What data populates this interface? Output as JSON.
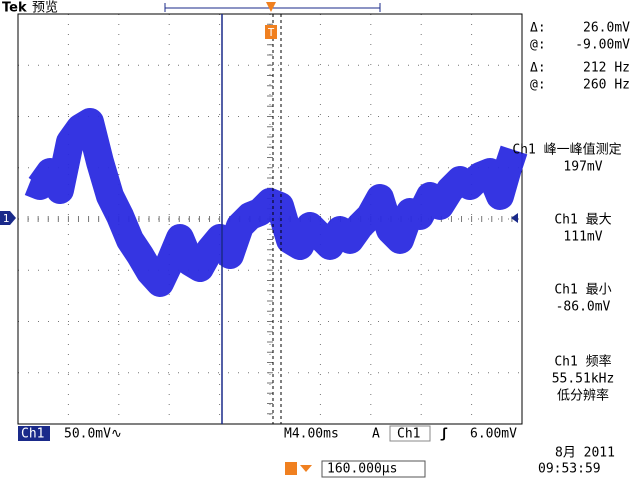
{
  "header": {
    "brand": "Tek",
    "mode": "预览"
  },
  "trigger_marker": "T",
  "channel_marker": "1",
  "cursor_readout": [
    {
      "label": "Δ:",
      "value": "26.0mV"
    },
    {
      "label": "@:",
      "value": "-9.00mV"
    },
    {
      "label": "Δ:",
      "value": "212 Hz"
    },
    {
      "label": "@:",
      "value": "260 Hz"
    }
  ],
  "measurements": [
    {
      "title": "Ch1 峰一峰值测定",
      "value": "197mV"
    },
    {
      "title": "Ch1 最大",
      "value": "111mV"
    },
    {
      "title": "Ch1 最小",
      "value": "-86.0mV"
    },
    {
      "title": "Ch1 频率",
      "value": "55.51kHz",
      "note": "低分辨率"
    }
  ],
  "status_bar": {
    "channel": "Ch1",
    "scale": "50.0mV∿",
    "timebase": "M4.00ms",
    "trigger_mode": "A",
    "trigger_source": "Ch1",
    "trigger_slope": "ʃ",
    "trigger_level": "6.00mV"
  },
  "trigger_position": "160.000µs",
  "date": "8月 2011",
  "time": "09:53:59"
}
